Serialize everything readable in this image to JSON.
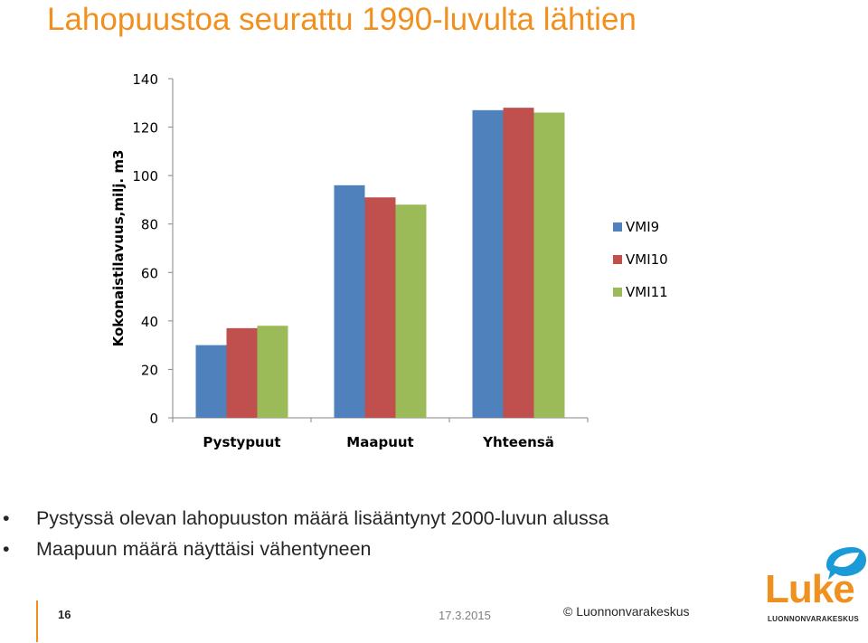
{
  "slide": {
    "title": "Lahopuustoa seurattu 1990-luvulta lähtien",
    "bullets": [
      "Pystyssä olevan lahopuuston määrä lisääntynyt 2000-luvun alussa",
      "Maapuun määrä näyttäisi vähentyneen"
    ],
    "bullet_glyph": "•"
  },
  "chart_data": {
    "type": "bar",
    "categories": [
      "Pystypuut",
      "Maapuut",
      "Yhteensä"
    ],
    "series": [
      {
        "name": "VMI9",
        "color": "#4f81bd",
        "values": [
          30,
          96,
          127
        ]
      },
      {
        "name": "VMI10",
        "color": "#c0504d",
        "values": [
          37,
          91,
          128
        ]
      },
      {
        "name": "VMI11",
        "color": "#9bbb59",
        "values": [
          38,
          88,
          126
        ]
      }
    ],
    "ylabel": "Kokonaistilavuus,milj. m3",
    "ylim": [
      0,
      140
    ],
    "yticks": [
      0,
      20,
      40,
      60,
      80,
      100,
      120,
      140
    ],
    "grid": false,
    "legend": "right"
  },
  "footer": {
    "page_number": "16",
    "date": "17.3.2015",
    "copyright": "© Luonnonvarakeskus"
  },
  "logo": {
    "brand": "Luke",
    "subtitle": "LUONNONVARAKESKUS",
    "color": "#f0901e",
    "accent": "#1a9ad6"
  }
}
